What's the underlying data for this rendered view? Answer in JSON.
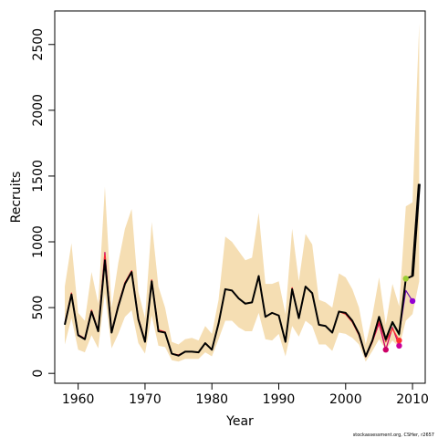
{
  "chart_data": {
    "type": "line",
    "xlabel": "Year",
    "ylabel": "Recruits",
    "xlim": [
      1956.5,
      2011.9
    ],
    "ylim": [
      -75,
      2755
    ],
    "x_ticks": [
      1960,
      1970,
      1980,
      1990,
      2000,
      2010
    ],
    "x_tick_labels": [
      "1960",
      "1970",
      "1980",
      "1990",
      "2000",
      "2010"
    ],
    "y_ticks": [
      0,
      500,
      1000,
      1500,
      2000,
      2500
    ],
    "y_tick_labels": [
      "0",
      "500",
      "1000",
      "1500",
      "2000",
      "2500"
    ],
    "credit": "stockassessment.org, CSHer, r2657",
    "confidence_band": {
      "color": "#f5deb3",
      "x": [
        1958,
        1959,
        1960,
        1961,
        1962,
        1963,
        1964,
        1965,
        1966,
        1967,
        1968,
        1969,
        1970,
        1971,
        1972,
        1973,
        1974,
        1975,
        1976,
        1977,
        1978,
        1979,
        1980,
        1981,
        1982,
        1983,
        1984,
        1985,
        1986,
        1987,
        1988,
        1989,
        1990,
        1991,
        1992,
        1993,
        1994,
        1995,
        1996,
        1997,
        1998,
        1999,
        2000,
        2001,
        2002,
        2003,
        2004,
        2005,
        2006,
        2007,
        2008,
        2009,
        2010,
        2011
      ],
      "lower": [
        220,
        420,
        180,
        160,
        290,
        190,
        610,
        190,
        300,
        430,
        480,
        230,
        150,
        440,
        210,
        200,
        100,
        90,
        110,
        110,
        110,
        160,
        130,
        260,
        400,
        400,
        350,
        320,
        320,
        460,
        260,
        250,
        300,
        130,
        360,
        280,
        400,
        360,
        220,
        220,
        170,
        310,
        300,
        270,
        220,
        90,
        170,
        260,
        180,
        250,
        200,
        400,
        450,
        700
      ],
      "upper": [
        660,
        990,
        460,
        400,
        770,
        530,
        1420,
        500,
        840,
        1100,
        1250,
        620,
        420,
        1150,
        660,
        500,
        240,
        220,
        260,
        270,
        250,
        360,
        300,
        560,
        1040,
        1000,
        930,
        860,
        880,
        1220,
        680,
        680,
        700,
        450,
        1100,
        700,
        1060,
        980,
        560,
        540,
        500,
        760,
        730,
        640,
        500,
        220,
        440,
        730,
        370,
        680,
        510,
        1270,
        1300,
        2660
      ]
    },
    "series": [
      {
        "color": "#000000",
        "x": [
          1958,
          1959,
          1960,
          1961,
          1962,
          1963,
          1964,
          1965,
          1966,
          1967,
          1968,
          1969,
          1970,
          1971,
          1972,
          1973,
          1974,
          1975,
          1976,
          1977,
          1978,
          1979,
          1980,
          1981,
          1982,
          1983,
          1984,
          1985,
          1986,
          1987,
          1988,
          1989,
          1990,
          1991,
          1992,
          1993,
          1994,
          1995,
          1996,
          1997,
          1998,
          1999,
          2000,
          2001,
          2002,
          2003,
          2004,
          2005,
          2006,
          2007,
          2008,
          2009,
          2010,
          2011
        ],
        "values": [
          370,
          600,
          290,
          260,
          470,
          320,
          860,
          310,
          510,
          680,
          770,
          410,
          240,
          700,
          320,
          310,
          150,
          135,
          165,
          165,
          160,
          230,
          180,
          380,
          640,
          630,
          570,
          530,
          540,
          740,
          430,
          460,
          440,
          240,
          640,
          420,
          660,
          610,
          370,
          360,
          310,
          470,
          460,
          400,
          300,
          130,
          250,
          430,
          260,
          390,
          300,
          720,
          740,
          1440
        ]
      },
      {
        "color": "#2e8b57",
        "x": [
          1958,
          1959,
          1960,
          1961,
          1962,
          1963,
          1964,
          1965,
          1966,
          1967,
          1968,
          1969,
          1970,
          1971,
          1972,
          1973,
          1974,
          1975,
          1976,
          1977,
          1978,
          1979,
          1980,
          1981,
          1982,
          1983,
          1984,
          1985,
          1986,
          1987,
          1988,
          1989,
          1990,
          1991,
          1992,
          1993,
          1994,
          1995,
          1996,
          1997,
          1998,
          1999,
          2000,
          2001,
          2002,
          2003,
          2004,
          2005,
          2006,
          2007,
          2008,
          2009
        ],
        "values": [
          370,
          600,
          290,
          260,
          470,
          320,
          860,
          310,
          510,
          680,
          770,
          410,
          240,
          700,
          320,
          310,
          150,
          135,
          165,
          165,
          160,
          230,
          180,
          380,
          640,
          630,
          570,
          530,
          540,
          740,
          430,
          460,
          440,
          240,
          640,
          420,
          660,
          610,
          370,
          360,
          310,
          470,
          460,
          400,
          300,
          130,
          250,
          420,
          250,
          380,
          290,
          720
        ],
        "end_marker": {
          "x": 2009,
          "y": 720,
          "color": "#9acd32"
        }
      },
      {
        "color": "#ff3030",
        "x": [
          1958,
          1959,
          1960,
          1961,
          1962,
          1963,
          1964,
          1965,
          1966,
          1967,
          1968,
          1969,
          1970,
          1971,
          1972,
          1973,
          1974,
          1975,
          1976,
          1977,
          1978,
          1979,
          1980,
          1981,
          1982,
          1983,
          1984,
          1985,
          1986,
          1987,
          1988,
          1989,
          1990,
          1991,
          1992,
          1993,
          1994,
          1995,
          1996,
          1997,
          1998,
          1999,
          2000,
          2001,
          2002,
          2003,
          2004,
          2005,
          2006,
          2007,
          2008
        ],
        "values": [
          380,
          610,
          290,
          265,
          480,
          325,
          900,
          315,
          520,
          690,
          780,
          420,
          245,
          710,
          330,
          315,
          150,
          140,
          165,
          165,
          160,
          230,
          180,
          380,
          640,
          630,
          570,
          530,
          540,
          740,
          430,
          460,
          440,
          240,
          650,
          420,
          660,
          610,
          370,
          360,
          310,
          470,
          450,
          390,
          290,
          130,
          240,
          400,
          240,
          340,
          250
        ],
        "end_marker": {
          "x": 2008,
          "y": 250,
          "color": "#ff3030"
        }
      },
      {
        "color": "#cc0066",
        "x": [
          1958,
          1959,
          1960,
          1961,
          1962,
          1963,
          1964,
          1965,
          1966,
          1967,
          1968,
          1969,
          1970,
          1971,
          1972,
          1973,
          1974,
          1975,
          1976,
          1977,
          1978,
          1979,
          1980,
          1981,
          1982,
          1983,
          1984,
          1985,
          1986,
          1987,
          1988,
          1989,
          1990,
          1991,
          1992,
          1993,
          1994,
          1995,
          1996,
          1997,
          1998,
          1999,
          2000,
          2001,
          2002,
          2003,
          2004,
          2005,
          2006,
          2007,
          2008
        ],
        "values": [
          375,
          610,
          295,
          265,
          480,
          325,
          920,
          315,
          520,
          690,
          780,
          420,
          245,
          710,
          330,
          315,
          150,
          140,
          165,
          165,
          160,
          230,
          180,
          380,
          640,
          630,
          570,
          530,
          540,
          740,
          430,
          460,
          440,
          240,
          650,
          420,
          660,
          610,
          370,
          360,
          310,
          470,
          450,
          390,
          290,
          125,
          240,
          380,
          180,
          350,
          210
        ],
        "end_marker": {
          "x": 2008,
          "y": 210,
          "color": "#cc0099"
        }
      },
      {
        "color": "#cc0066",
        "x": [
          2005,
          2006
        ],
        "values": [
          380,
          180
        ],
        "end_marker": {
          "x": 2006,
          "y": 180,
          "color": "#cc0066"
        }
      },
      {
        "color": "#6a0dad",
        "x": [
          2008,
          2009,
          2010
        ],
        "values": [
          300,
          630,
          550
        ],
        "end_marker": {
          "x": 2010,
          "y": 550,
          "color": "#9400d3"
        }
      }
    ]
  }
}
